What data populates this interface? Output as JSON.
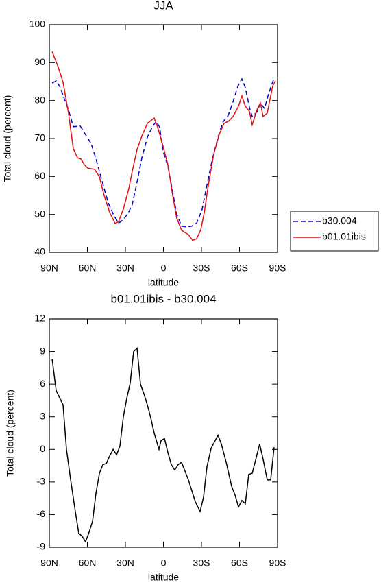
{
  "chart_data": [
    {
      "type": "line",
      "title": "JJA",
      "xlabel": "latitude",
      "ylabel": "Total cloud (percent)",
      "xlim": [
        90,
        -90
      ],
      "xticks": [
        {
          "value": 90,
          "label": "90N"
        },
        {
          "value": 60,
          "label": "60N"
        },
        {
          "value": 30,
          "label": "30N"
        },
        0,
        {
          "value": -30,
          "label": "30S"
        },
        {
          "value": -60,
          "label": "60S"
        },
        {
          "value": -90,
          "label": "90S"
        }
      ],
      "ylim": [
        40,
        100
      ],
      "yticks": [
        40,
        50,
        60,
        70,
        80,
        90,
        100
      ],
      "legend": "right",
      "series": [
        {
          "name": "b30.004",
          "color": "#0000cc",
          "dash": true,
          "x": [
            87.8,
            84.6,
            81.4,
            78.6,
            74.9,
            71.1,
            65.7,
            61.4,
            57.0,
            53.2,
            47.8,
            43.5,
            39.7,
            35.4,
            31.6,
            27.8,
            24.6,
            20.8,
            17.0,
            12.7,
            8.9,
            5.7,
            3.0,
            0.3,
            -3.5,
            -7.3,
            -10.5,
            -14.3,
            -18.6,
            -22.4,
            -26.2,
            -30.5,
            -34.3,
            -38.6,
            -43.0,
            -46.8,
            -51.1,
            -54.9,
            -58.6,
            -61.9,
            -64.6,
            -67.8,
            -70.0,
            -73.8,
            -76.5,
            -79.7,
            -83.0,
            -86.8
          ],
          "values": [
            84.6,
            85.2,
            83.5,
            80.8,
            77.6,
            73.1,
            73.3,
            71.0,
            68.6,
            64.6,
            58.0,
            53.0,
            50.1,
            47.7,
            48.6,
            50.4,
            52.6,
            58.5,
            65.0,
            70.3,
            73.0,
            74.5,
            73.0,
            66.7,
            62.7,
            55.9,
            50.1,
            46.9,
            46.7,
            46.9,
            47.7,
            51.3,
            57.7,
            64.6,
            70.3,
            74.3,
            76.1,
            79.7,
            83.7,
            85.7,
            83.4,
            78.3,
            75.8,
            77.0,
            79.4,
            77.9,
            81.9,
            85.5
          ]
        },
        {
          "name": "b01.01ibis",
          "color": "#e01010",
          "dash": false,
          "x": [
            87.8,
            83.0,
            79.2,
            74.9,
            71.1,
            67.8,
            65.1,
            62.4,
            59.7,
            54.3,
            50.5,
            46.8,
            42.4,
            38.1,
            35.4,
            31.6,
            27.3,
            24.6,
            20.8,
            17.0,
            12.7,
            7.3,
            4.6,
            0.8,
            -3.5,
            -7.3,
            -10.5,
            -14.3,
            -19.7,
            -23.0,
            -26.2,
            -29.5,
            -32.2,
            -35.4,
            -39.7,
            -44.1,
            -47.8,
            -51.1,
            -54.9,
            -59.2,
            -61.9,
            -64.6,
            -67.8,
            -70.0,
            -73.8,
            -76.5,
            -78.6,
            -81.9,
            -86.2,
            -88.4
          ],
          "values": [
            92.9,
            88.8,
            84.8,
            76.7,
            67.3,
            64.9,
            64.6,
            63.1,
            62.2,
            61.9,
            59.9,
            55.0,
            50.5,
            47.6,
            48.1,
            51.4,
            56.8,
            61.4,
            67.1,
            70.7,
            74.0,
            75.4,
            73.0,
            68.6,
            63.1,
            55.0,
            49.0,
            45.8,
            44.7,
            43.2,
            43.6,
            46.0,
            50.5,
            57.7,
            65.9,
            71.2,
            74.0,
            74.5,
            75.8,
            78.5,
            81.2,
            78.5,
            77.2,
            73.6,
            77.6,
            79.4,
            75.8,
            76.7,
            83.9,
            85.2
          ]
        }
      ]
    },
    {
      "type": "line",
      "title": "b01.01ibis - b30.004",
      "xlabel": "latitude",
      "ylabel": "Total cloud (percent)",
      "xlim": [
        90,
        -90
      ],
      "xticks": [
        {
          "value": 90,
          "label": "90N"
        },
        {
          "value": 60,
          "label": "60N"
        },
        {
          "value": 30,
          "label": "30N"
        },
        0,
        {
          "value": -30,
          "label": "30S"
        },
        {
          "value": -60,
          "label": "60S"
        },
        {
          "value": -90,
          "label": "90S"
        }
      ],
      "ylim": [
        -9,
        12
      ],
      "yticks": [
        -9,
        -6,
        -3,
        0,
        3,
        6,
        9,
        12
      ],
      "series": [
        {
          "color": "#000000",
          "dash": false,
          "x": [
            87.8,
            84.6,
            79.2,
            76.5,
            73.2,
            69.5,
            66.8,
            64.1,
            61.4,
            58.6,
            55.9,
            53.2,
            50.5,
            47.8,
            45.1,
            42.4,
            39.7,
            37.0,
            34.3,
            31.6,
            28.9,
            26.2,
            23.5,
            20.8,
            18.1,
            15.4,
            12.7,
            10.0,
            7.3,
            3.5,
            1.9,
            -0.8,
            -3.5,
            -6.2,
            -8.9,
            -11.6,
            -14.3,
            -19.7,
            -25.1,
            -28.9,
            -31.6,
            -34.3,
            -37.6,
            -43.0,
            -45.7,
            -49.5,
            -53.8,
            -56.5,
            -59.2,
            -61.9,
            -64.6,
            -67.3,
            -70.0,
            -72.7,
            -75.9,
            -78.6,
            -81.9,
            -84.6,
            -87.3
          ],
          "values": [
            8.3,
            5.4,
            4.1,
            0.0,
            -2.8,
            -5.7,
            -7.7,
            -8.0,
            -8.5,
            -7.6,
            -6.6,
            -4.0,
            -2.2,
            -1.4,
            -1.3,
            -0.6,
            0.0,
            -0.5,
            0.3,
            3.0,
            4.7,
            6.1,
            9.0,
            9.3,
            6.0,
            5.1,
            4.1,
            2.9,
            1.5,
            0.0,
            0.8,
            1.0,
            -0.3,
            -1.4,
            -1.9,
            -1.4,
            -1.2,
            -2.8,
            -4.8,
            -5.7,
            -4.4,
            -1.6,
            0.1,
            1.3,
            0.5,
            -1.2,
            -3.4,
            -4.2,
            -5.3,
            -4.7,
            -5.0,
            -2.3,
            -2.2,
            -1.0,
            0.5,
            -0.9,
            -2.8,
            -2.8,
            0.2
          ]
        }
      ]
    }
  ]
}
